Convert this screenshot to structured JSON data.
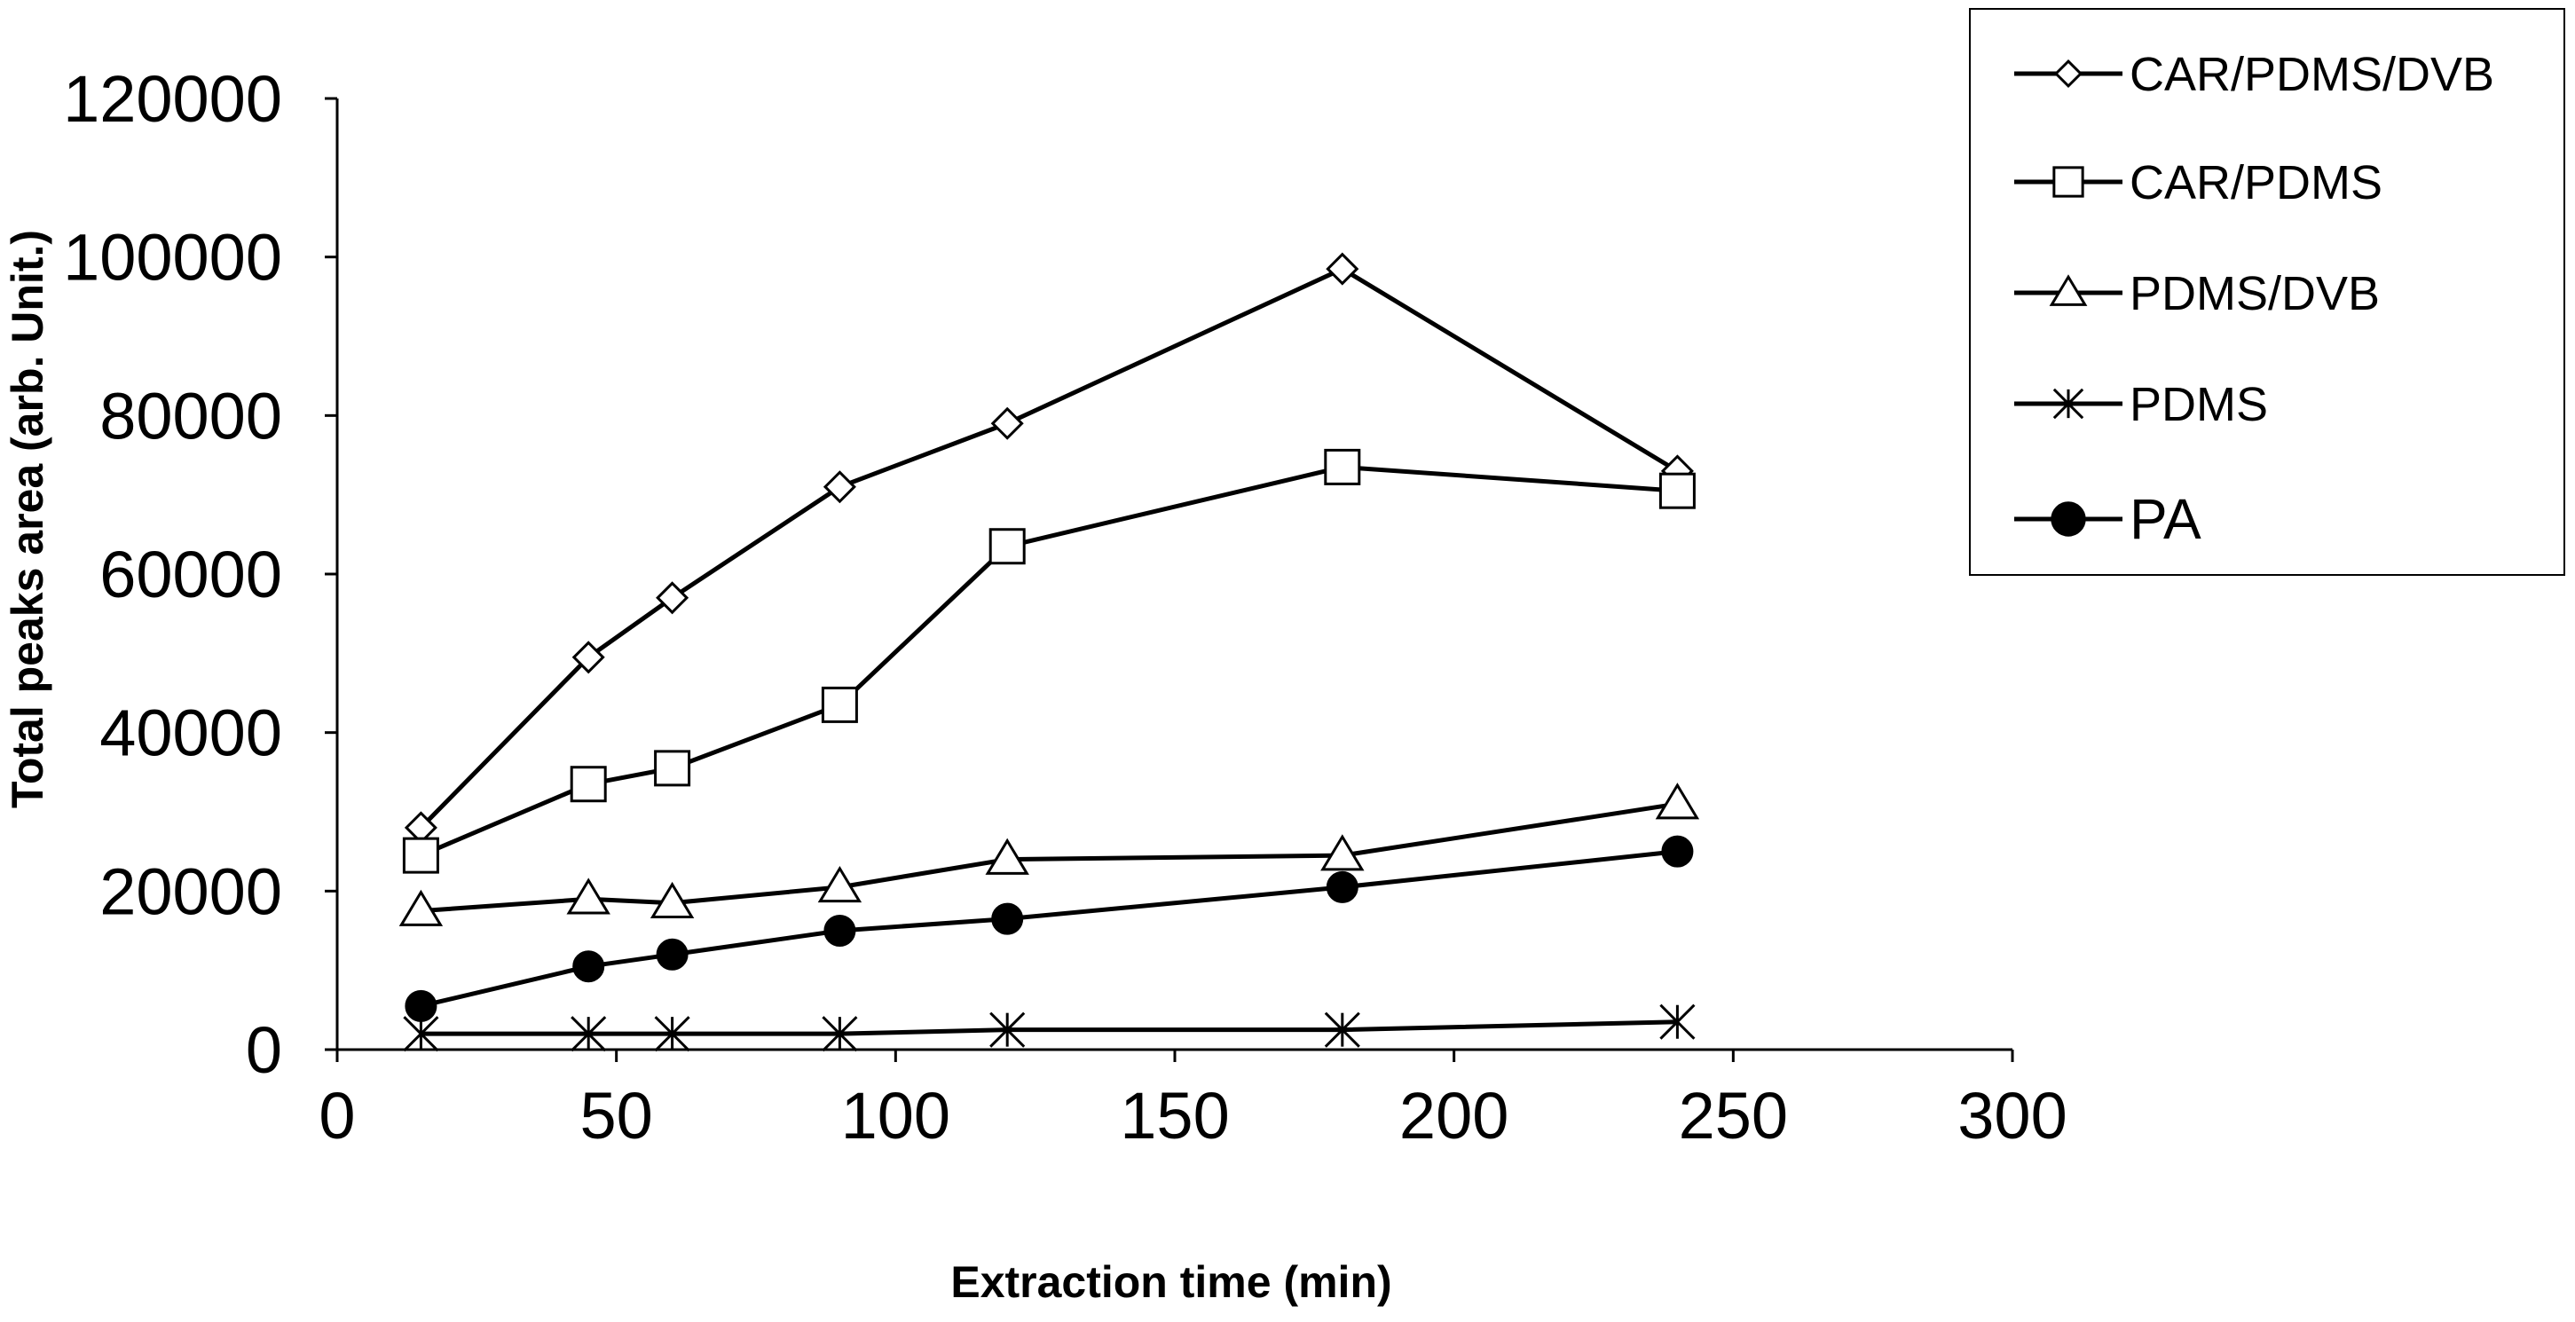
{
  "chart_data": {
    "type": "line",
    "title": "",
    "xlabel": "Extraction time (min)",
    "ylabel": "Total peaks area (arb. Unit.)",
    "xlim": [
      0,
      300
    ],
    "ylim": [
      0,
      120000
    ],
    "xticks": [
      0,
      50,
      100,
      150,
      200,
      250,
      300
    ],
    "yticks": [
      0,
      20000,
      40000,
      60000,
      80000,
      100000,
      120000
    ],
    "xtick_labels": [
      "0",
      "50",
      "100",
      "150",
      "200",
      "250",
      "300"
    ],
    "ytick_labels": [
      "0",
      "20000",
      "40000",
      "60000",
      "80000",
      "100000",
      "120000"
    ],
    "grid": false,
    "legend_position": "top-right",
    "x": [
      15,
      45,
      60,
      90,
      120,
      180,
      240
    ],
    "series": [
      {
        "name": "CAR/PDMS/DVB",
        "marker": "diamond",
        "values": [
          28000,
          49500,
          57000,
          71000,
          79000,
          98500,
          73000
        ]
      },
      {
        "name": "CAR/PDMS",
        "marker": "square",
        "values": [
          24500,
          33500,
          35500,
          43500,
          63500,
          73500,
          70500
        ]
      },
      {
        "name": "PDMS/DVB",
        "marker": "triangle",
        "values": [
          17500,
          19000,
          18500,
          20500,
          24000,
          24500,
          31000
        ]
      },
      {
        "name": "PDMS",
        "marker": "asterisk",
        "values": [
          2000,
          2000,
          2000,
          2000,
          2500,
          2500,
          3500
        ]
      },
      {
        "name": "PA",
        "marker": "filled-circle",
        "values": [
          5500,
          10500,
          12000,
          15000,
          16500,
          20500,
          25000
        ]
      }
    ],
    "colors": {
      "line": "#000000",
      "background": "#ffffff",
      "marker_fill": "#ffffff",
      "filled_marker": "#000000"
    }
  }
}
